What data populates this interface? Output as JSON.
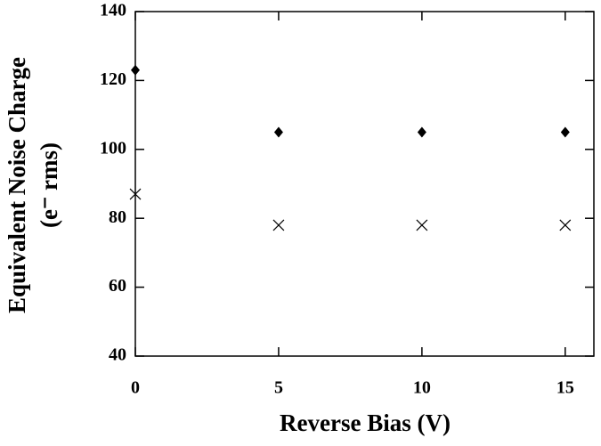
{
  "chart_data": {
    "type": "scatter",
    "xlabel": "Reverse Bias (V)",
    "ylabel": [
      "Equivalent Noise Charge",
      "(e⁻ rms)"
    ],
    "xlim": [
      0,
      16
    ],
    "ylim": [
      40,
      140
    ],
    "xticks": [
      0,
      5,
      10,
      15
    ],
    "yticks": [
      40,
      60,
      80,
      100,
      120,
      140
    ],
    "series": [
      {
        "marker": "diamond",
        "color": "#000000",
        "x": [
          0,
          5,
          10,
          15
        ],
        "values": [
          123,
          105,
          105,
          105
        ]
      },
      {
        "marker": "x",
        "color": "#000000",
        "x": [
          0,
          5,
          10,
          15
        ],
        "values": [
          87,
          78,
          78,
          78
        ]
      }
    ]
  }
}
